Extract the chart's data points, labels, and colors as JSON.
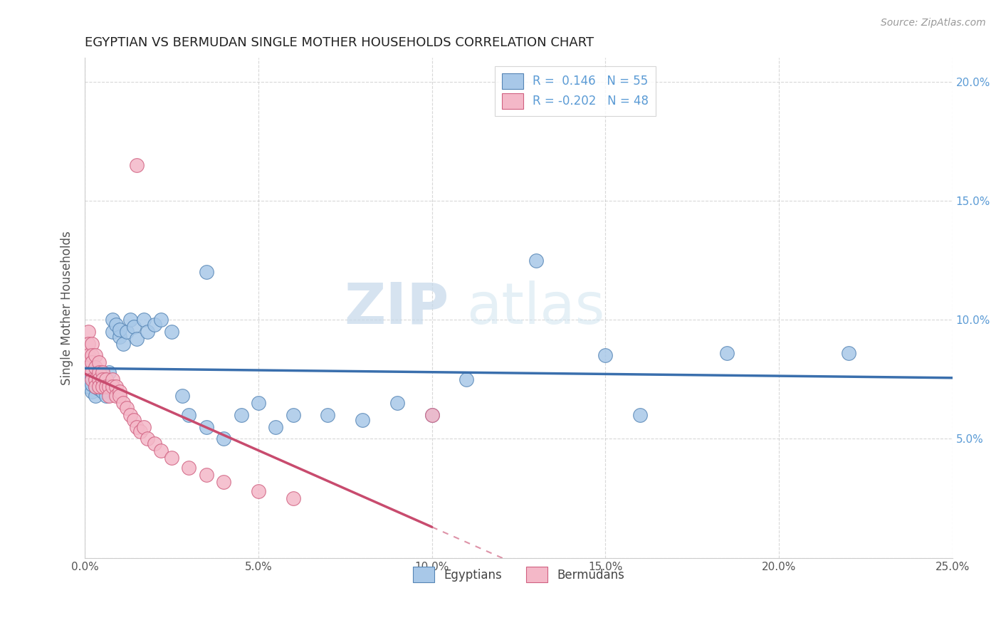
{
  "title": "EGYPTIAN VS BERMUDAN SINGLE MOTHER HOUSEHOLDS CORRELATION CHART",
  "source": "Source: ZipAtlas.com",
  "ylabel": "Single Mother Households",
  "xlim": [
    0.0,
    0.25
  ],
  "ylim": [
    0.0,
    0.21
  ],
  "xticks": [
    0.0,
    0.05,
    0.1,
    0.15,
    0.2,
    0.25
  ],
  "xticklabels": [
    "0.0%",
    "5.0%",
    "10.0%",
    "15.0%",
    "20.0%",
    "25.0%"
  ],
  "yticks": [
    0.0,
    0.05,
    0.1,
    0.15,
    0.2
  ],
  "yticklabels": [
    "",
    "5.0%",
    "10.0%",
    "15.0%",
    "20.0%"
  ],
  "color_egyptian": "#a8c8e8",
  "color_bermudan": "#f4b8c8",
  "edge_color_egyptian": "#5585b5",
  "edge_color_bermudan": "#d06080",
  "line_color_egyptian": "#3a6fad",
  "line_color_bermudan": "#c84b6e",
  "watermark_zip": "ZIP",
  "watermark_atlas": "atlas",
  "egyptians_x": [
    0.001,
    0.001,
    0.001,
    0.002,
    0.002,
    0.002,
    0.002,
    0.003,
    0.003,
    0.003,
    0.003,
    0.004,
    0.004,
    0.004,
    0.005,
    0.005,
    0.005,
    0.006,
    0.006,
    0.007,
    0.007,
    0.008,
    0.008,
    0.009,
    0.01,
    0.01,
    0.011,
    0.012,
    0.013,
    0.014,
    0.015,
    0.017,
    0.018,
    0.02,
    0.022,
    0.025,
    0.028,
    0.03,
    0.035,
    0.04,
    0.045,
    0.05,
    0.055,
    0.06,
    0.07,
    0.08,
    0.09,
    0.1,
    0.11,
    0.13,
    0.15,
    0.16,
    0.185,
    0.22,
    0.035
  ],
  "egyptians_y": [
    0.075,
    0.072,
    0.078,
    0.07,
    0.073,
    0.076,
    0.08,
    0.068,
    0.072,
    0.075,
    0.079,
    0.071,
    0.074,
    0.077,
    0.07,
    0.073,
    0.076,
    0.068,
    0.075,
    0.072,
    0.078,
    0.095,
    0.1,
    0.098,
    0.093,
    0.096,
    0.09,
    0.095,
    0.1,
    0.097,
    0.092,
    0.1,
    0.095,
    0.098,
    0.1,
    0.095,
    0.068,
    0.06,
    0.055,
    0.05,
    0.06,
    0.065,
    0.055,
    0.06,
    0.06,
    0.058,
    0.065,
    0.06,
    0.075,
    0.125,
    0.085,
    0.06,
    0.086,
    0.086,
    0.12
  ],
  "bermudans_x": [
    0.001,
    0.001,
    0.001,
    0.001,
    0.002,
    0.002,
    0.002,
    0.002,
    0.002,
    0.003,
    0.003,
    0.003,
    0.003,
    0.004,
    0.004,
    0.004,
    0.004,
    0.005,
    0.005,
    0.005,
    0.006,
    0.006,
    0.007,
    0.007,
    0.008,
    0.008,
    0.009,
    0.009,
    0.01,
    0.01,
    0.011,
    0.012,
    0.013,
    0.014,
    0.015,
    0.016,
    0.017,
    0.018,
    0.02,
    0.022,
    0.025,
    0.03,
    0.035,
    0.04,
    0.05,
    0.06,
    0.1,
    0.015
  ],
  "bermudans_y": [
    0.095,
    0.09,
    0.085,
    0.08,
    0.09,
    0.085,
    0.082,
    0.078,
    0.075,
    0.085,
    0.08,
    0.075,
    0.072,
    0.082,
    0.078,
    0.075,
    0.072,
    0.078,
    0.075,
    0.072,
    0.075,
    0.072,
    0.072,
    0.068,
    0.075,
    0.072,
    0.072,
    0.068,
    0.07,
    0.068,
    0.065,
    0.063,
    0.06,
    0.058,
    0.055,
    0.053,
    0.055,
    0.05,
    0.048,
    0.045,
    0.042,
    0.038,
    0.035,
    0.032,
    0.028,
    0.025,
    0.06,
    0.165
  ]
}
